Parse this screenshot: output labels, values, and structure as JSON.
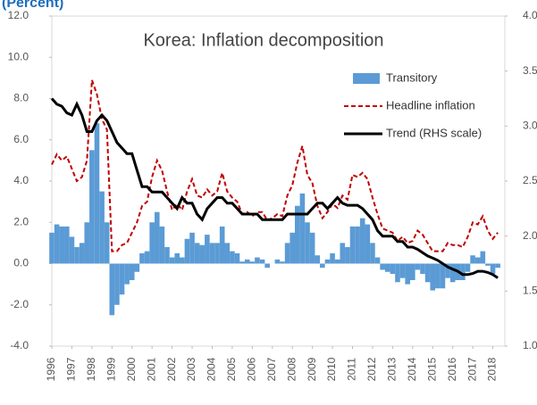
{
  "chart_data": {
    "type": "combo",
    "title": "Korea: Inflation decomposition",
    "subtitle": "(Percent)",
    "x": [
      1996,
      1996.25,
      1996.5,
      1996.75,
      1997,
      1997.25,
      1997.5,
      1997.75,
      1998,
      1998.25,
      1998.5,
      1998.75,
      1999,
      1999.25,
      1999.5,
      1999.75,
      2000,
      2000.25,
      2000.5,
      2000.75,
      2001,
      2001.25,
      2001.5,
      2001.75,
      2002,
      2002.25,
      2002.5,
      2002.75,
      2003,
      2003.25,
      2003.5,
      2003.75,
      2004,
      2004.25,
      2004.5,
      2004.75,
      2005,
      2005.25,
      2005.5,
      2005.75,
      2006,
      2006.25,
      2006.5,
      2006.75,
      2007,
      2007.25,
      2007.5,
      2007.75,
      2008,
      2008.25,
      2008.5,
      2008.75,
      2009,
      2009.25,
      2009.5,
      2009.75,
      2010,
      2010.25,
      2010.5,
      2010.75,
      2011,
      2011.25,
      2011.5,
      2011.75,
      2012,
      2012.25,
      2012.5,
      2012.75,
      2013,
      2013.25,
      2013.5,
      2013.75,
      2014,
      2014.25,
      2014.5,
      2014.75,
      2015,
      2015.25,
      2015.5,
      2015.75,
      2016,
      2016.25,
      2016.5,
      2016.75,
      2017,
      2017.25,
      2017.5,
      2017.75,
      2018,
      2018.25
    ],
    "series": [
      {
        "name": "Transitory",
        "kind": "bar",
        "color": "#5b9bd5",
        "values": [
          1.5,
          1.9,
          1.8,
          1.8,
          1.3,
          0.8,
          1.0,
          2.0,
          5.5,
          6.8,
          3.5,
          2.0,
          -2.5,
          -2.0,
          -1.5,
          -1.0,
          -0.8,
          -0.4,
          0.5,
          0.6,
          2.0,
          2.5,
          1.8,
          0.8,
          0.3,
          0.5,
          0.3,
          1.2,
          1.5,
          1.0,
          0.9,
          1.4,
          1.0,
          1.0,
          1.8,
          1.0,
          0.6,
          0.5,
          0.1,
          0.2,
          0.1,
          0.3,
          0.2,
          -0.2,
          0.0,
          0.2,
          0.1,
          1.0,
          1.5,
          2.8,
          3.4,
          2.0,
          1.5,
          0.4,
          -0.2,
          0.2,
          0.5,
          0.2,
          1.0,
          0.8,
          1.8,
          1.8,
          2.2,
          1.9,
          1.0,
          0.3,
          -0.3,
          -0.4,
          -0.5,
          -0.9,
          -0.7,
          -1.0,
          -0.8,
          -0.3,
          -0.5,
          -0.9,
          -1.3,
          -1.2,
          -1.2,
          -0.7,
          -0.9,
          -0.8,
          -0.8,
          -0.4,
          0.4,
          0.3,
          0.6,
          -0.1,
          -0.5,
          -0.2
        ]
      },
      {
        "name": "Headline inflation",
        "kind": "line",
        "dash": true,
        "color": "#c00000",
        "values": [
          4.8,
          5.3,
          5.0,
          5.2,
          4.6,
          4.0,
          4.2,
          5.0,
          8.9,
          8.2,
          7.0,
          6.5,
          0.6,
          0.6,
          0.9,
          1.0,
          1.5,
          2.0,
          2.8,
          3.0,
          4.2,
          5.0,
          4.5,
          3.5,
          2.6,
          2.9,
          2.6,
          3.5,
          4.1,
          3.3,
          3.2,
          3.6,
          3.3,
          3.5,
          4.4,
          3.5,
          3.2,
          3.0,
          2.4,
          2.5,
          2.3,
          2.5,
          2.5,
          2.1,
          2.2,
          2.4,
          2.3,
          3.3,
          3.8,
          4.9,
          5.7,
          4.3,
          3.9,
          2.8,
          2.2,
          2.5,
          2.9,
          2.7,
          3.3,
          3.1,
          4.3,
          4.2,
          4.4,
          4.1,
          3.2,
          2.4,
          1.7,
          1.6,
          1.5,
          1.1,
          1.3,
          1.0,
          1.1,
          1.6,
          1.4,
          1.0,
          0.6,
          0.6,
          0.6,
          1.0,
          0.9,
          0.9,
          0.8,
          1.3,
          2.0,
          1.9,
          2.3,
          1.6,
          1.2,
          1.5
        ]
      },
      {
        "name": "Trend (RHS scale)",
        "kind": "line",
        "axis": "y2",
        "color": "#000000",
        "values": [
          3.25,
          3.2,
          3.18,
          3.12,
          3.1,
          3.2,
          3.1,
          2.95,
          2.95,
          3.05,
          3.1,
          3.05,
          2.95,
          2.85,
          2.8,
          2.75,
          2.75,
          2.6,
          2.45,
          2.45,
          2.4,
          2.4,
          2.4,
          2.35,
          2.3,
          2.25,
          2.35,
          2.3,
          2.3,
          2.2,
          2.15,
          2.25,
          2.3,
          2.35,
          2.35,
          2.3,
          2.3,
          2.25,
          2.2,
          2.2,
          2.2,
          2.2,
          2.15,
          2.15,
          2.15,
          2.15,
          2.15,
          2.2,
          2.2,
          2.2,
          2.2,
          2.2,
          2.25,
          2.3,
          2.3,
          2.25,
          2.3,
          2.35,
          2.3,
          2.28,
          2.28,
          2.28,
          2.25,
          2.2,
          2.15,
          2.05,
          2.0,
          2.0,
          2.0,
          1.95,
          1.95,
          1.9,
          1.9,
          1.88,
          1.85,
          1.82,
          1.8,
          1.78,
          1.75,
          1.72,
          1.7,
          1.68,
          1.65,
          1.65,
          1.66,
          1.68,
          1.68,
          1.67,
          1.65,
          1.62
        ]
      }
    ],
    "xlim": [
      1996,
      2018.6
    ],
    "xticks": [
      1996,
      1997,
      1998,
      1999,
      2000,
      2001,
      2002,
      2003,
      2004,
      2005,
      2006,
      2007,
      2008,
      2009,
      2010,
      2011,
      2012,
      2013,
      2014,
      2015,
      2016,
      2017,
      2018
    ],
    "ylim": [
      -4,
      12
    ],
    "yticks": [
      {
        "value": -4,
        "label": "-4.0"
      },
      {
        "value": -2,
        "label": "-2.0"
      },
      {
        "value": 0,
        "label": "0.0"
      },
      {
        "value": 2,
        "label": "2.0"
      },
      {
        "value": 4,
        "label": "4.0"
      },
      {
        "value": 6,
        "label": "6.0"
      },
      {
        "value": 8,
        "label": "8.0"
      },
      {
        "value": 10,
        "label": "10.0"
      },
      {
        "value": 12,
        "label": "12.0"
      }
    ],
    "y2lim": [
      1,
      4
    ],
    "y2ticks": [
      {
        "value": 1,
        "label": "1.0"
      },
      {
        "value": 1.5,
        "label": "1.5"
      },
      {
        "value": 2,
        "label": "2.0"
      },
      {
        "value": 2.5,
        "label": "2.5"
      },
      {
        "value": 3,
        "label": "3.0"
      },
      {
        "value": 3.5,
        "label": "3.5"
      },
      {
        "value": 4,
        "label": "4.0"
      }
    ],
    "legend": "top-right"
  }
}
